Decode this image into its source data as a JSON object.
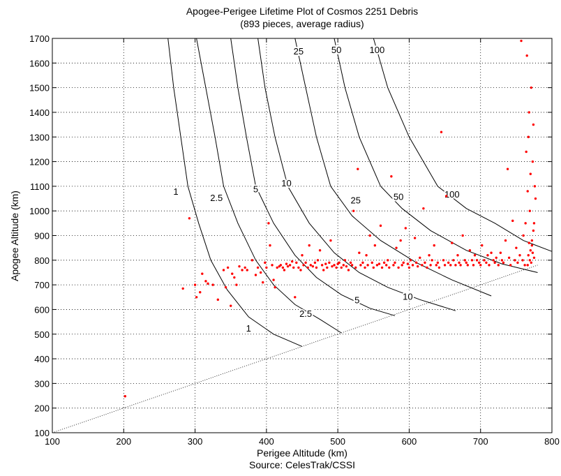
{
  "chart_data": {
    "type": "scatter",
    "title": "Apogee-Perigee Lifetime Plot of Cosmos 2251 Debris",
    "subtitle": "(893 pieces, average radius)",
    "xlabel": "Perigee Altitude (km)",
    "ylabel": "Apogee Altitude (km)",
    "source": "Source: CelesTrak/CSSI",
    "xlim": [
      100,
      800
    ],
    "ylim": [
      100,
      1700
    ],
    "xticks": [
      "100",
      "200",
      "300",
      "400",
      "500",
      "600",
      "700",
      "800"
    ],
    "yticks": [
      "100",
      "200",
      "300",
      "400",
      "500",
      "600",
      "700",
      "800",
      "900",
      "1000",
      "1100",
      "1200",
      "1300",
      "1400",
      "1500",
      "1600",
      "1700"
    ],
    "grid": true,
    "colors": {
      "points": "#ff0000",
      "contours": "#000000",
      "grid": "#000000"
    },
    "circular_orbit_line": [
      [
        100,
        100
      ],
      [
        780,
        780
      ]
    ],
    "contours": [
      {
        "label": "1",
        "points": [
          [
            262,
            1700
          ],
          [
            270,
            1500
          ],
          [
            280,
            1300
          ],
          [
            290,
            1100
          ],
          [
            305,
            950
          ],
          [
            322,
            800
          ],
          [
            345,
            680
          ],
          [
            375,
            570
          ],
          [
            410,
            500
          ],
          [
            450,
            450
          ]
        ],
        "labels_at": [
          [
            273,
            1065
          ],
          [
            375,
            510
          ]
        ]
      },
      {
        "label": "2.5",
        "points": [
          [
            302,
            1700
          ],
          [
            315,
            1500
          ],
          [
            328,
            1300
          ],
          [
            340,
            1100
          ],
          [
            360,
            950
          ],
          [
            385,
            800
          ],
          [
            410,
            700
          ],
          [
            440,
            620
          ],
          [
            475,
            560
          ],
          [
            505,
            505
          ]
        ],
        "labels_at": [
          [
            330,
            1040
          ],
          [
            455,
            570
          ]
        ]
      },
      {
        "label": "5",
        "points": [
          [
            350,
            1700
          ],
          [
            360,
            1500
          ],
          [
            372,
            1300
          ],
          [
            385,
            1100
          ],
          [
            410,
            950
          ],
          [
            440,
            820
          ],
          [
            470,
            730
          ],
          [
            505,
            660
          ],
          [
            545,
            605
          ],
          [
            580,
            575
          ]
        ],
        "labels_at": [
          [
            385,
            1075
          ],
          [
            527,
            625
          ]
        ]
      },
      {
        "label": "10",
        "points": [
          [
            388,
            1700
          ],
          [
            398,
            1500
          ],
          [
            412,
            1300
          ],
          [
            430,
            1100
          ],
          [
            460,
            950
          ],
          [
            495,
            830
          ],
          [
            530,
            750
          ],
          [
            570,
            690
          ],
          [
            615,
            640
          ],
          [
            665,
            595
          ]
        ],
        "labels_at": [
          [
            428,
            1100
          ],
          [
            598,
            640
          ]
        ]
      },
      {
        "label": "25",
        "points": [
          [
            440,
            1700
          ],
          [
            455,
            1500
          ],
          [
            470,
            1300
          ],
          [
            490,
            1100
          ],
          [
            520,
            980
          ],
          [
            560,
            880
          ],
          [
            610,
            790
          ],
          [
            660,
            720
          ],
          [
            715,
            655
          ]
        ],
        "labels_at": [
          [
            445,
            1635
          ],
          [
            525,
            1030
          ]
        ]
      },
      {
        "label": "50",
        "points": [
          [
            495,
            1700
          ],
          [
            510,
            1500
          ],
          [
            530,
            1300
          ],
          [
            560,
            1100
          ],
          [
            590,
            1010
          ],
          [
            630,
            920
          ],
          [
            680,
            840
          ],
          [
            730,
            785
          ],
          [
            780,
            750
          ]
        ],
        "labels_at": [
          [
            498,
            1640
          ],
          [
            585,
            1045
          ]
        ]
      },
      {
        "label": "100",
        "points": [
          [
            550,
            1700
          ],
          [
            570,
            1500
          ],
          [
            600,
            1300
          ],
          [
            640,
            1100
          ],
          [
            680,
            1010
          ],
          [
            720,
            950
          ],
          [
            760,
            880
          ],
          [
            805,
            830
          ]
        ],
        "labels_at": [
          [
            555,
            1640
          ],
          [
            660,
            1055
          ]
        ]
      }
    ],
    "series": [
      {
        "points": [
          [
            202,
            248
          ],
          [
            283,
            685
          ],
          [
            292,
            970
          ],
          [
            300,
            700
          ],
          [
            302,
            650
          ],
          [
            307,
            670
          ],
          [
            310,
            745
          ],
          [
            315,
            715
          ],
          [
            318,
            705
          ],
          [
            325,
            700
          ],
          [
            332,
            640
          ],
          [
            340,
            760
          ],
          [
            343,
            690
          ],
          [
            346,
            770
          ],
          [
            350,
            615
          ],
          [
            352,
            745
          ],
          [
            355,
            730
          ],
          [
            358,
            700
          ],
          [
            362,
            775
          ],
          [
            366,
            760
          ],
          [
            370,
            770
          ],
          [
            373,
            760
          ],
          [
            380,
            800
          ],
          [
            385,
            740
          ],
          [
            388,
            770
          ],
          [
            392,
            750
          ],
          [
            395,
            710
          ],
          [
            398,
            790
          ],
          [
            400,
            770
          ],
          [
            403,
            950
          ],
          [
            405,
            860
          ],
          [
            408,
            780
          ],
          [
            410,
            720
          ],
          [
            412,
            690
          ],
          [
            415,
            770
          ],
          [
            418,
            775
          ],
          [
            420,
            780
          ],
          [
            423,
            770
          ],
          [
            425,
            760
          ],
          [
            428,
            785
          ],
          [
            430,
            775
          ],
          [
            433,
            780
          ],
          [
            436,
            795
          ],
          [
            438,
            770
          ],
          [
            440,
            650
          ],
          [
            442,
            790
          ],
          [
            445,
            770
          ],
          [
            448,
            760
          ],
          [
            450,
            820
          ],
          [
            452,
            780
          ],
          [
            455,
            790
          ],
          [
            458,
            770
          ],
          [
            460,
            860
          ],
          [
            462,
            780
          ],
          [
            465,
            775
          ],
          [
            468,
            790
          ],
          [
            470,
            770
          ],
          [
            472,
            800
          ],
          [
            475,
            840
          ],
          [
            478,
            780
          ],
          [
            480,
            760
          ],
          [
            483,
            785
          ],
          [
            485,
            770
          ],
          [
            488,
            790
          ],
          [
            490,
            880
          ],
          [
            492,
            775
          ],
          [
            495,
            780
          ],
          [
            498,
            770
          ],
          [
            500,
            785
          ],
          [
            502,
            790
          ],
          [
            505,
            770
          ],
          [
            508,
            780
          ],
          [
            510,
            800
          ],
          [
            512,
            775
          ],
          [
            515,
            760
          ],
          [
            518,
            790
          ],
          [
            520,
            780
          ],
          [
            522,
            1000
          ],
          [
            525,
            770
          ],
          [
            528,
            1170
          ],
          [
            530,
            830
          ],
          [
            532,
            780
          ],
          [
            535,
            790
          ],
          [
            538,
            770
          ],
          [
            540,
            820
          ],
          [
            542,
            780
          ],
          [
            545,
            900
          ],
          [
            548,
            790
          ],
          [
            550,
            770
          ],
          [
            552,
            860
          ],
          [
            555,
            780
          ],
          [
            558,
            785
          ],
          [
            560,
            940
          ],
          [
            562,
            770
          ],
          [
            565,
            790
          ],
          [
            568,
            780
          ],
          [
            570,
            800
          ],
          [
            572,
            770
          ],
          [
            575,
            1140
          ],
          [
            578,
            780
          ],
          [
            580,
            790
          ],
          [
            582,
            850
          ],
          [
            585,
            770
          ],
          [
            588,
            880
          ],
          [
            590,
            780
          ],
          [
            592,
            790
          ],
          [
            595,
            930
          ],
          [
            598,
            785
          ],
          [
            600,
            770
          ],
          [
            602,
            800
          ],
          [
            605,
            780
          ],
          [
            608,
            890
          ],
          [
            610,
            790
          ],
          [
            612,
            775
          ],
          [
            615,
            810
          ],
          [
            618,
            780
          ],
          [
            620,
            1010
          ],
          [
            622,
            790
          ],
          [
            625,
            770
          ],
          [
            628,
            820
          ],
          [
            630,
            780
          ],
          [
            632,
            800
          ],
          [
            635,
            860
          ],
          [
            638,
            780
          ],
          [
            640,
            790
          ],
          [
            642,
            770
          ],
          [
            645,
            1320
          ],
          [
            648,
            800
          ],
          [
            650,
            780
          ],
          [
            652,
            1060
          ],
          [
            655,
            790
          ],
          [
            658,
            780
          ],
          [
            660,
            870
          ],
          [
            662,
            800
          ],
          [
            665,
            780
          ],
          [
            668,
            820
          ],
          [
            670,
            790
          ],
          [
            672,
            780
          ],
          [
            675,
            900
          ],
          [
            678,
            800
          ],
          [
            680,
            790
          ],
          [
            682,
            780
          ],
          [
            685,
            840
          ],
          [
            688,
            800
          ],
          [
            690,
            780
          ],
          [
            692,
            820
          ],
          [
            695,
            800
          ],
          [
            698,
            790
          ],
          [
            700,
            780
          ],
          [
            702,
            860
          ],
          [
            705,
            800
          ],
          [
            708,
            790
          ],
          [
            710,
            820
          ],
          [
            712,
            780
          ],
          [
            715,
            830
          ],
          [
            718,
            800
          ],
          [
            720,
            790
          ],
          [
            722,
            810
          ],
          [
            725,
            780
          ],
          [
            728,
            830
          ],
          [
            730,
            800
          ],
          [
            732,
            790
          ],
          [
            735,
            880
          ],
          [
            738,
            1170
          ],
          [
            740,
            810
          ],
          [
            742,
            780
          ],
          [
            745,
            960
          ],
          [
            748,
            800
          ],
          [
            750,
            850
          ],
          [
            752,
            790
          ],
          [
            755,
            820
          ],
          [
            757,
            1690
          ],
          [
            759,
            800
          ],
          [
            760,
            900
          ],
          [
            762,
            780
          ],
          [
            763,
            950
          ],
          [
            764,
            1240
          ],
          [
            765,
            1630
          ],
          [
            766,
            1080
          ],
          [
            767,
            1300
          ],
          [
            768,
            1400
          ],
          [
            769,
            1000
          ],
          [
            770,
            1150
          ],
          [
            771,
            1500
          ],
          [
            772,
            860
          ],
          [
            773,
            1200
          ],
          [
            774,
            1350
          ],
          [
            775,
            950
          ],
          [
            776,
            1100
          ],
          [
            777,
            1050
          ],
          [
            767,
            820
          ],
          [
            769,
            800
          ],
          [
            771,
            790
          ],
          [
            773,
            830
          ],
          [
            775,
            810
          ],
          [
            770,
            840
          ],
          [
            772,
            880
          ],
          [
            768,
            870
          ],
          [
            774,
            920
          ],
          [
            766,
            780
          ]
        ]
      }
    ]
  }
}
